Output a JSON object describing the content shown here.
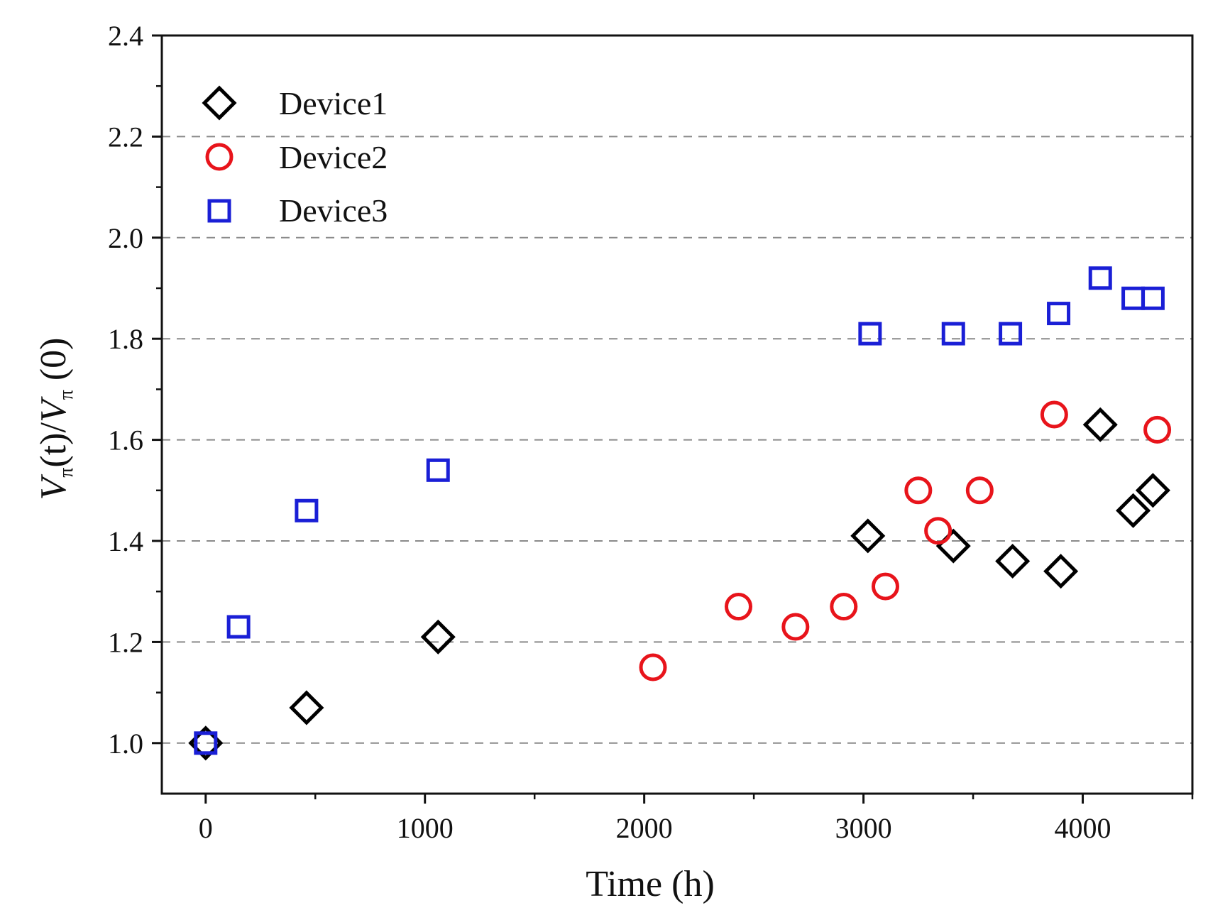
{
  "chart_data": {
    "type": "scatter",
    "title": "",
    "xlabel": "Time (h)",
    "ylabel": {
      "v1": "V",
      "sub1": "π",
      "mid": "(t)/",
      "v2": "V",
      "sub2": "π",
      "tail": " (0)"
    },
    "xlim": [
      -200,
      4500
    ],
    "ylim": [
      0.9,
      2.4
    ],
    "xticks": [
      0,
      1000,
      2000,
      3000,
      4000
    ],
    "xticklabels": [
      "0",
      "1000",
      "2000",
      "3000",
      "4000"
    ],
    "xminor": [
      500,
      1500,
      2500,
      3500,
      4500
    ],
    "yticks": [
      1.0,
      1.2,
      1.4,
      1.6,
      1.8,
      2.0,
      2.2,
      2.4
    ],
    "yticklabels": [
      "1.0",
      "1.2",
      "1.4",
      "1.6",
      "1.8",
      "2.0",
      "2.2",
      "2.4"
    ],
    "yminor": [
      1.1,
      1.3,
      1.5,
      1.7,
      1.9,
      2.1,
      2.3
    ],
    "grid": "horizontal dashed",
    "legend_position": "top-left",
    "series": [
      {
        "name": "Device1",
        "marker": "diamond",
        "color": "#000000",
        "points": [
          [
            0,
            1.0
          ],
          [
            460,
            1.07
          ],
          [
            1060,
            1.21
          ],
          [
            3020,
            1.41
          ],
          [
            3410,
            1.39
          ],
          [
            3680,
            1.36
          ],
          [
            3900,
            1.34
          ],
          [
            4080,
            1.63
          ],
          [
            4230,
            1.46
          ],
          [
            4320,
            1.5
          ]
        ]
      },
      {
        "name": "Device2",
        "marker": "circle",
        "color": "#e8141b",
        "points": [
          [
            2040,
            1.15
          ],
          [
            2430,
            1.27
          ],
          [
            2690,
            1.23
          ],
          [
            2910,
            1.27
          ],
          [
            3100,
            1.31
          ],
          [
            3250,
            1.5
          ],
          [
            3340,
            1.42
          ],
          [
            3530,
            1.5
          ],
          [
            3870,
            1.65
          ],
          [
            4340,
            1.62
          ]
        ]
      },
      {
        "name": "Device3",
        "marker": "square",
        "color": "#1a1fd6",
        "points": [
          [
            0,
            1.0
          ],
          [
            150,
            1.23
          ],
          [
            460,
            1.46
          ],
          [
            1060,
            1.54
          ],
          [
            3030,
            1.81
          ],
          [
            3410,
            1.81
          ],
          [
            3670,
            1.81
          ],
          [
            3890,
            1.85
          ],
          [
            4080,
            1.92
          ],
          [
            4230,
            1.88
          ],
          [
            4320,
            1.88
          ]
        ]
      }
    ]
  }
}
